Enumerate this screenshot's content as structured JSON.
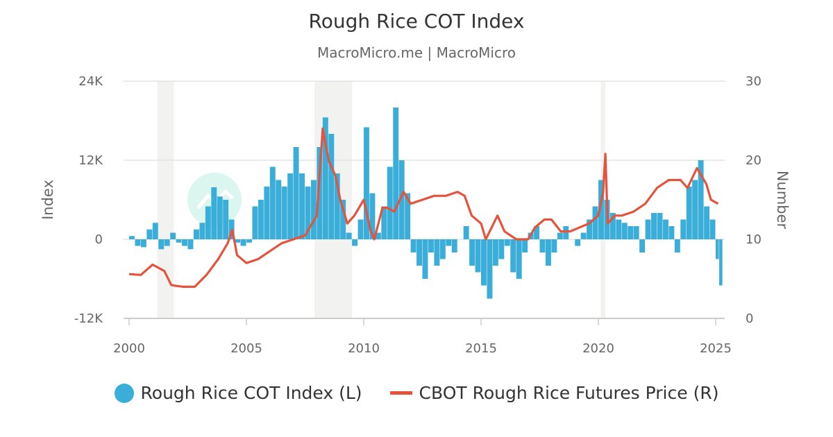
{
  "chart_data": {
    "type": "bar+line",
    "title": "Rough Rice COT Index",
    "subtitle": "MacroMicro.me | MacroMicro",
    "watermark": "MacroMicro",
    "xlim": [
      2000,
      2025.3
    ],
    "x_ticks": [
      "2000",
      "2005",
      "2010",
      "2015",
      "2020",
      "2025"
    ],
    "y_left": {
      "label": "Index",
      "lim": [
        -12000,
        24000
      ],
      "ticks": [
        "-12K",
        "0",
        "12K",
        "24K"
      ],
      "tick_values": [
        -12000,
        0,
        12000,
        24000
      ]
    },
    "y_right": {
      "label": "Number",
      "lim": [
        0,
        30
      ],
      "ticks": [
        "0",
        "10",
        "20",
        "30"
      ],
      "tick_values": [
        0,
        10,
        20,
        30
      ]
    },
    "grid": true,
    "legend_position": "bottom",
    "colors": {
      "index": "#3aaed8",
      "price": "#e5533c",
      "recession": "#f2f2f0"
    },
    "recession_shading": [
      [
        2001.2,
        2001.9
      ],
      [
        2007.9,
        2009.5
      ],
      [
        2020.1,
        2020.3
      ]
    ],
    "series": [
      {
        "name": "Rough Rice COT Index (L)",
        "type": "bar",
        "axis": "left",
        "points": [
          [
            2000.0,
            500
          ],
          [
            2000.25,
            -1000
          ],
          [
            2000.5,
            -1200
          ],
          [
            2000.75,
            1500
          ],
          [
            2001.0,
            2500
          ],
          [
            2001.25,
            -1500
          ],
          [
            2001.5,
            -1000
          ],
          [
            2001.75,
            1000
          ],
          [
            2002.0,
            -500
          ],
          [
            2002.25,
            -1000
          ],
          [
            2002.5,
            -1500
          ],
          [
            2002.75,
            1500
          ],
          [
            2003.0,
            2500
          ],
          [
            2003.25,
            5000
          ],
          [
            2003.5,
            7900
          ],
          [
            2003.75,
            6500
          ],
          [
            2004.0,
            6000
          ],
          [
            2004.25,
            3000
          ],
          [
            2004.5,
            -500
          ],
          [
            2004.75,
            -1000
          ],
          [
            2005.0,
            -500
          ],
          [
            2005.25,
            5000
          ],
          [
            2005.5,
            6000
          ],
          [
            2005.75,
            8000
          ],
          [
            2006.0,
            11000
          ],
          [
            2006.25,
            9000
          ],
          [
            2006.5,
            8000
          ],
          [
            2006.75,
            10000
          ],
          [
            2007.0,
            14000
          ],
          [
            2007.25,
            10000
          ],
          [
            2007.5,
            8000
          ],
          [
            2007.75,
            9000
          ],
          [
            2008.0,
            14000
          ],
          [
            2008.25,
            18500
          ],
          [
            2008.5,
            16000
          ],
          [
            2008.75,
            10000
          ],
          [
            2009.0,
            6000
          ],
          [
            2009.25,
            1000
          ],
          [
            2009.5,
            -1000
          ],
          [
            2009.75,
            3000
          ],
          [
            2010.0,
            17000
          ],
          [
            2010.25,
            7000
          ],
          [
            2010.5,
            1000
          ],
          [
            2010.75,
            5000
          ],
          [
            2011.0,
            11000
          ],
          [
            2011.25,
            20000
          ],
          [
            2011.5,
            12000
          ],
          [
            2011.75,
            7000
          ],
          [
            2012.0,
            -2000
          ],
          [
            2012.25,
            -4000
          ],
          [
            2012.5,
            -6000
          ],
          [
            2012.75,
            -2000
          ],
          [
            2013.0,
            -4000
          ],
          [
            2013.25,
            -3000
          ],
          [
            2013.5,
            -1000
          ],
          [
            2013.75,
            -2000
          ],
          [
            2014.0,
            0
          ],
          [
            2014.25,
            2000
          ],
          [
            2014.5,
            -4000
          ],
          [
            2014.75,
            -5000
          ],
          [
            2015.0,
            -7000
          ],
          [
            2015.25,
            -9000
          ],
          [
            2015.5,
            -4000
          ],
          [
            2015.75,
            -3000
          ],
          [
            2016.0,
            -1000
          ],
          [
            2016.25,
            -5000
          ],
          [
            2016.5,
            -6000
          ],
          [
            2016.75,
            -2000
          ],
          [
            2017.0,
            1000
          ],
          [
            2017.25,
            2000
          ],
          [
            2017.5,
            -2000
          ],
          [
            2017.75,
            -4000
          ],
          [
            2018.0,
            -2000
          ],
          [
            2018.25,
            1000
          ],
          [
            2018.5,
            2000
          ],
          [
            2018.75,
            0
          ],
          [
            2019.0,
            -1000
          ],
          [
            2019.25,
            1000
          ],
          [
            2019.5,
            3000
          ],
          [
            2019.75,
            5000
          ],
          [
            2020.0,
            9000
          ],
          [
            2020.25,
            6000
          ],
          [
            2020.5,
            4000
          ],
          [
            2020.75,
            3000
          ],
          [
            2021.0,
            2500
          ],
          [
            2021.25,
            2000
          ],
          [
            2021.5,
            2000
          ],
          [
            2021.75,
            -2000
          ],
          [
            2022.0,
            3000
          ],
          [
            2022.25,
            4000
          ],
          [
            2022.5,
            4000
          ],
          [
            2022.75,
            3000
          ],
          [
            2023.0,
            2000
          ],
          [
            2023.25,
            -2000
          ],
          [
            2023.5,
            3000
          ],
          [
            2023.75,
            8000
          ],
          [
            2024.0,
            9000
          ],
          [
            2024.25,
            12000
          ],
          [
            2024.5,
            5000
          ],
          [
            2024.75,
            3000
          ],
          [
            2025.0,
            -3000
          ],
          [
            2025.15,
            -7000
          ]
        ]
      },
      {
        "name": "CBOT Rough Rice Futures Price (R)",
        "type": "line",
        "axis": "right",
        "points": [
          [
            2000.0,
            5.6
          ],
          [
            2000.5,
            5.5
          ],
          [
            2001.0,
            6.8
          ],
          [
            2001.5,
            6.0
          ],
          [
            2001.8,
            4.2
          ],
          [
            2002.3,
            4.0
          ],
          [
            2002.8,
            4.0
          ],
          [
            2003.3,
            5.5
          ],
          [
            2003.8,
            7.5
          ],
          [
            2004.2,
            9.5
          ],
          [
            2004.4,
            11.2
          ],
          [
            2004.6,
            8.0
          ],
          [
            2005.0,
            7.0
          ],
          [
            2005.5,
            7.5
          ],
          [
            2006.0,
            8.5
          ],
          [
            2006.5,
            9.5
          ],
          [
            2007.0,
            10.0
          ],
          [
            2007.5,
            10.5
          ],
          [
            2008.0,
            13.0
          ],
          [
            2008.25,
            24.0
          ],
          [
            2008.5,
            20.0
          ],
          [
            2008.8,
            18.0
          ],
          [
            2009.0,
            15.0
          ],
          [
            2009.3,
            12.0
          ],
          [
            2009.6,
            13.0
          ],
          [
            2010.0,
            15.0
          ],
          [
            2010.3,
            11.0
          ],
          [
            2010.45,
            10.0
          ],
          [
            2010.8,
            14.0
          ],
          [
            2011.0,
            14.0
          ],
          [
            2011.3,
            13.5
          ],
          [
            2011.7,
            16.0
          ],
          [
            2012.0,
            14.5
          ],
          [
            2012.5,
            15.0
          ],
          [
            2013.0,
            15.5
          ],
          [
            2013.5,
            15.5
          ],
          [
            2014.0,
            16.0
          ],
          [
            2014.3,
            15.5
          ],
          [
            2014.6,
            13.0
          ],
          [
            2015.0,
            12.0
          ],
          [
            2015.2,
            10.0
          ],
          [
            2015.7,
            13.0
          ],
          [
            2016.0,
            11.0
          ],
          [
            2016.5,
            10.0
          ],
          [
            2017.0,
            10.0
          ],
          [
            2017.3,
            11.5
          ],
          [
            2017.7,
            12.5
          ],
          [
            2018.0,
            12.5
          ],
          [
            2018.4,
            11.0
          ],
          [
            2018.8,
            11.0
          ],
          [
            2019.2,
            11.5
          ],
          [
            2019.6,
            12.0
          ],
          [
            2020.0,
            13.0
          ],
          [
            2020.2,
            16.0
          ],
          [
            2020.3,
            20.8
          ],
          [
            2020.4,
            12.0
          ],
          [
            2020.7,
            13.0
          ],
          [
            2021.0,
            13.0
          ],
          [
            2021.5,
            13.5
          ],
          [
            2022.0,
            14.5
          ],
          [
            2022.5,
            16.5
          ],
          [
            2023.0,
            17.5
          ],
          [
            2023.5,
            17.5
          ],
          [
            2023.8,
            16.5
          ],
          [
            2024.2,
            19.0
          ],
          [
            2024.6,
            17.0
          ],
          [
            2024.8,
            15.0
          ],
          [
            2025.1,
            14.5
          ]
        ]
      }
    ]
  }
}
